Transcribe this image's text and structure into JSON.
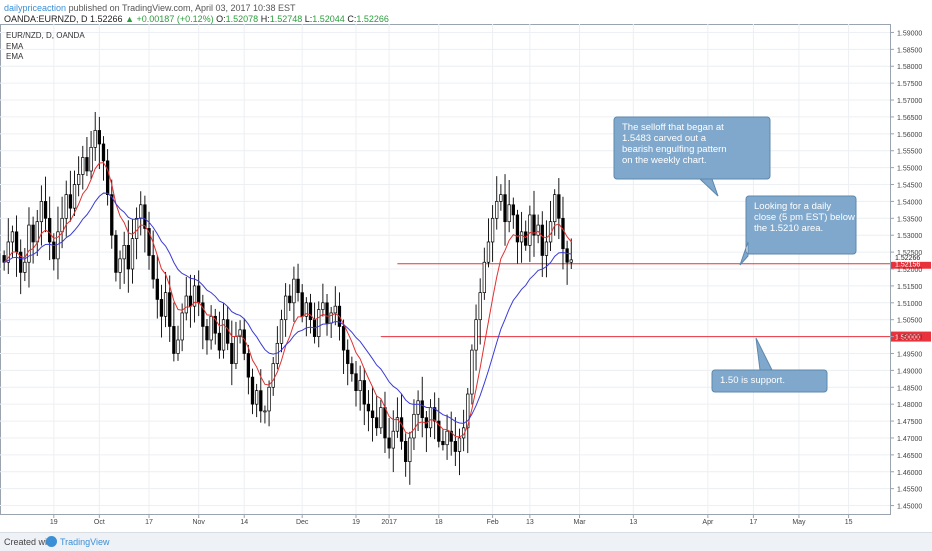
{
  "header": {
    "author": "dailypriceaction",
    "published": "published on TradingView.com, April 03, 2017 10:38 EST",
    "symbol": "OANDA:EURNZD, D",
    "last": "1.52266",
    "change": "+0.00187 (+0.12%)",
    "o_label": "O:",
    "o_value": "1.52078",
    "h_label": "H:",
    "h_value": "1.52748",
    "l_label": "L:",
    "l_value": "1.52044",
    "c_label": "C:",
    "c_value": "1.52266"
  },
  "legend": {
    "title": "EUR/NZD, D, OANDA",
    "ema1": "EMA",
    "ema2": "EMA"
  },
  "footer": {
    "created_with": "Created with",
    "brand": "TradingView"
  },
  "colors": {
    "bull": "#ffffff",
    "bear": "#000000",
    "wick": "#000000",
    "ema_fast": "#e03131",
    "ema_slow": "#3b3bd6",
    "level": "#e8323c",
    "callout_bg": "#7fa8cc",
    "callout_border": "#5d87ad",
    "grid": "#eceff3"
  },
  "chart_data": {
    "type": "candlestick",
    "symbol": "EUR/NZD",
    "timeframe": "D",
    "ylim": [
      1.4475,
      1.5925
    ],
    "y_ticks": [
      "1.45000",
      "1.45500",
      "1.46000",
      "1.46500",
      "1.47000",
      "1.47500",
      "1.48000",
      "1.48500",
      "1.49000",
      "1.49500",
      "1.50000",
      "1.50500",
      "1.51000",
      "1.51500",
      "1.52000",
      "1.52500",
      "1.53000",
      "1.53500",
      "1.54000",
      "1.54500",
      "1.55000",
      "1.55500",
      "1.56000",
      "1.56500",
      "1.57000",
      "1.57500",
      "1.58000",
      "1.58500",
      "1.59000"
    ],
    "x_ticks": [
      {
        "label": "19",
        "x": 13
      },
      {
        "label": "Oct",
        "x": 24
      },
      {
        "label": "17",
        "x": 36
      },
      {
        "label": "Nov",
        "x": 48
      },
      {
        "label": "14",
        "x": 59
      },
      {
        "label": "Dec",
        "x": 73
      },
      {
        "label": "19",
        "x": 86
      },
      {
        "label": "2017",
        "x": 94
      },
      {
        "label": "18",
        "x": 106
      },
      {
        "label": "Feb",
        "x": 119
      },
      {
        "label": "13",
        "x": 128
      },
      {
        "label": "Mar",
        "x": 140
      },
      {
        "label": "13",
        "x": 153
      },
      {
        "label": "Apr",
        "x": 171
      },
      {
        "label": "17",
        "x": 182
      },
      {
        "label": "May",
        "x": 193
      },
      {
        "label": "15",
        "x": 205
      }
    ],
    "x_range": [
      0,
      215
    ],
    "closes": [
      1.522,
      1.528,
      1.531,
      1.525,
      1.519,
      1.522,
      1.533,
      1.528,
      1.534,
      1.54,
      1.535,
      1.528,
      1.523,
      1.531,
      1.535,
      1.542,
      1.538,
      1.545,
      1.548,
      1.553,
      1.549,
      1.556,
      1.561,
      1.557,
      1.552,
      1.542,
      1.53,
      1.519,
      1.523,
      1.527,
      1.52,
      1.529,
      1.535,
      1.539,
      1.532,
      1.524,
      1.517,
      1.511,
      1.506,
      1.513,
      1.503,
      1.495,
      1.499,
      1.507,
      1.512,
      1.509,
      1.515,
      1.51,
      1.503,
      1.499,
      1.506,
      1.501,
      1.496,
      1.505,
      1.498,
      1.492,
      1.5,
      1.502,
      1.495,
      1.488,
      1.48,
      1.484,
      1.478,
      1.478,
      1.485,
      1.492,
      1.498,
      1.505,
      1.512,
      1.51,
      1.517,
      1.513,
      1.506,
      1.51,
      1.505,
      1.5,
      1.508,
      1.51,
      1.504,
      1.507,
      1.509,
      1.503,
      1.496,
      1.492,
      1.489,
      1.484,
      1.487,
      1.48,
      1.478,
      1.476,
      1.473,
      1.479,
      1.47,
      1.467,
      1.472,
      1.476,
      1.469,
      1.463,
      1.47,
      1.477,
      1.481,
      1.476,
      1.473,
      1.479,
      1.475,
      1.469,
      1.468,
      1.472,
      1.469,
      1.466,
      1.47,
      1.473,
      1.483,
      1.496,
      1.505,
      1.513,
      1.522,
      1.528,
      1.535,
      1.54,
      1.542,
      1.534,
      1.539,
      1.536,
      1.528,
      1.531,
      1.527,
      1.536,
      1.53,
      1.533,
      1.524,
      1.528,
      1.534,
      1.542,
      1.535,
      1.526,
      1.522,
      1.5227
    ],
    "levels": [
      {
        "label": "1.52156",
        "value": 1.52156
      },
      {
        "label": "1.50000",
        "value": 1.5
      }
    ],
    "last_price_label": "1.52266",
    "annotations": [
      "The selloff that began at 1.5483 carved out a bearish engulfing pattern on the weekly chart.",
      "Looking for a daily close (5 pm EST) below the 1.5210 area.",
      "1.50 is support."
    ]
  }
}
